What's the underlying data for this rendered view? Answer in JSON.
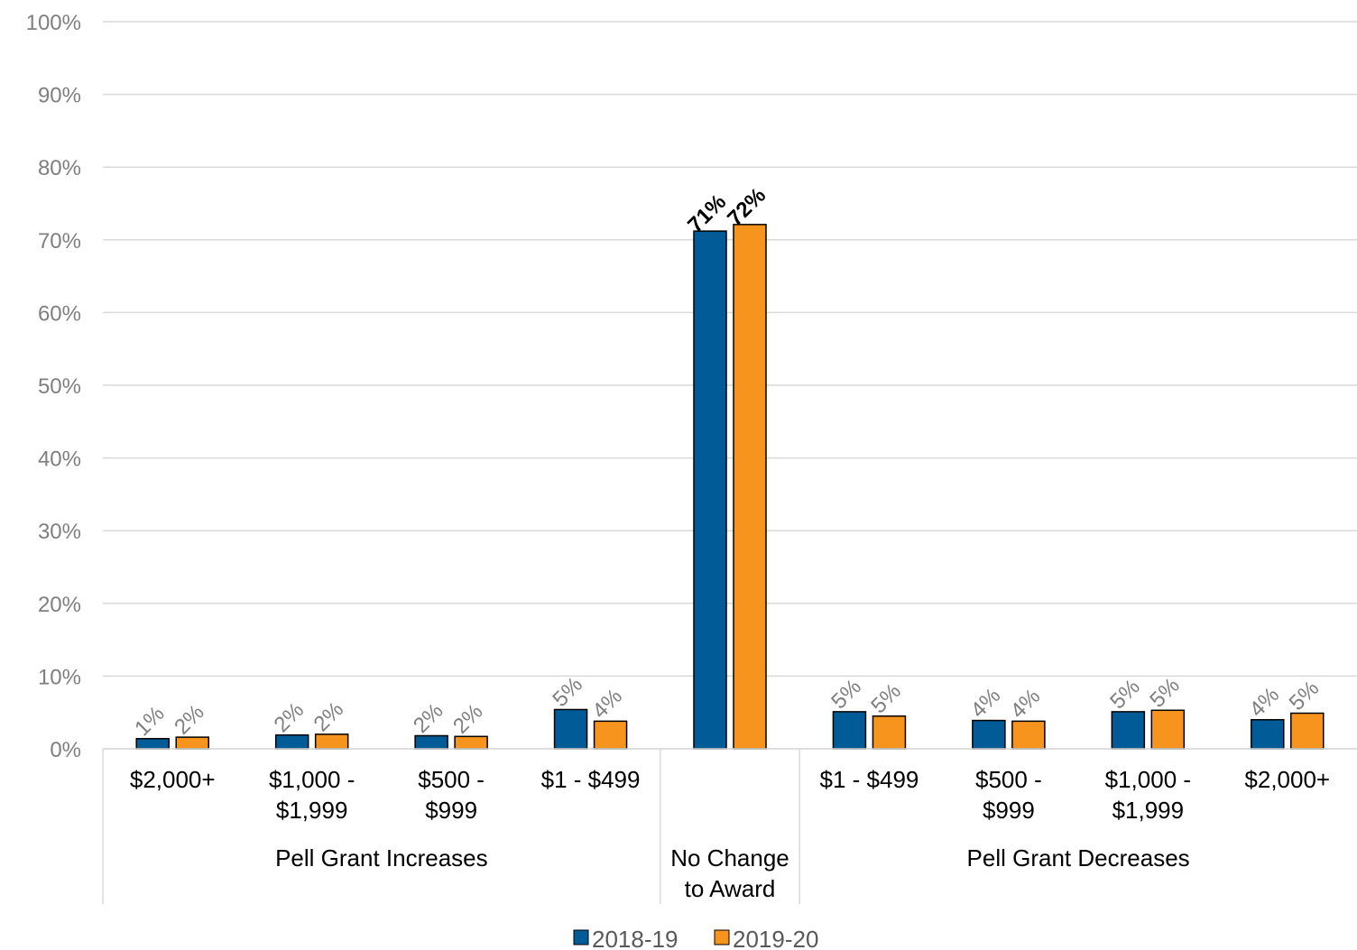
{
  "chart_data": {
    "type": "bar",
    "categories": [
      {
        "label": [
          "$2,000+"
        ],
        "group": "Pell Grant Increases"
      },
      {
        "label": [
          "$1,000 -",
          "$1,999"
        ],
        "group": "Pell Grant Increases"
      },
      {
        "label": [
          "$500 -",
          "$999"
        ],
        "group": "Pell Grant Increases"
      },
      {
        "label": [
          "$1 - $499"
        ],
        "group": "Pell Grant Increases"
      },
      {
        "label": [],
        "group": "No Change to Award"
      },
      {
        "label": [
          "$1 - $499"
        ],
        "group": "Pell Grant Decreases"
      },
      {
        "label": [
          "$500 -",
          "$999"
        ],
        "group": "Pell Grant Decreases"
      },
      {
        "label": [
          "$1,000 -",
          "$1,999"
        ],
        "group": "Pell Grant Decreases"
      },
      {
        "label": [
          "$2,000+"
        ],
        "group": "Pell Grant Decreases"
      }
    ],
    "groups": [
      {
        "label": [
          "Pell Grant Increases"
        ],
        "count": 4
      },
      {
        "label": [
          "No Change",
          "to Award"
        ],
        "count": 1
      },
      {
        "label": [
          "Pell Grant Decreases"
        ],
        "count": 4
      }
    ],
    "series": [
      {
        "name": "2018-19",
        "color": "#005b96",
        "values": [
          1.4,
          1.9,
          1.8,
          5.4,
          71.2,
          5.1,
          3.9,
          5.1,
          4.0
        ],
        "labels": [
          "1%",
          "2%",
          "2%",
          "5%",
          "71%",
          "5%",
          "4%",
          "5%",
          "4%"
        ]
      },
      {
        "name": "2019-20",
        "color": "#f7941d",
        "values": [
          1.6,
          2.0,
          1.7,
          3.8,
          72.1,
          4.5,
          3.8,
          5.3,
          4.9
        ],
        "labels": [
          "2%",
          "2%",
          "2%",
          "4%",
          "72%",
          "5%",
          "4%",
          "5%",
          "5%"
        ]
      }
    ],
    "highlight_index": 4,
    "ylim": [
      0,
      100
    ],
    "yticks": [
      0,
      10,
      20,
      30,
      40,
      50,
      60,
      70,
      80,
      90,
      100
    ],
    "ytick_labels": [
      "0%",
      "10%",
      "20%",
      "30%",
      "40%",
      "50%",
      "60%",
      "70%",
      "80%",
      "90%",
      "100%"
    ],
    "grid": true,
    "legend_position": "bottom",
    "title": "",
    "xlabel": "",
    "ylabel": ""
  }
}
